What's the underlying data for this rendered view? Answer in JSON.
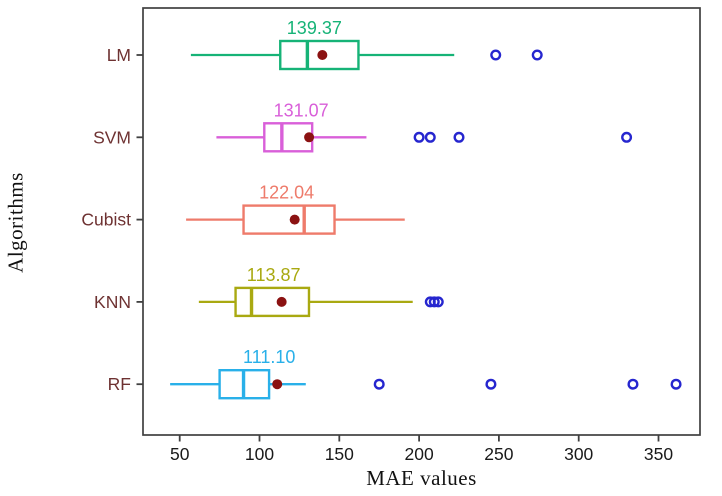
{
  "chart_data": {
    "type": "boxplot",
    "orientation": "horizontal",
    "xlabel": "MAE values",
    "ylabel": "Algorithms",
    "xlim": [
      27,
      376
    ],
    "x_ticks": [
      50,
      100,
      150,
      200,
      250,
      300,
      350
    ],
    "grid": false,
    "categories_top_to_bottom": [
      "LM",
      "SVM",
      "Cubist",
      "KNN",
      "RF"
    ],
    "series": [
      {
        "name": "LM",
        "color": "#16b377",
        "whisker_low": 57,
        "q1": 113,
        "median": 130,
        "q3": 162,
        "whisker_high": 222,
        "mean": 139.37,
        "mean_label": "139.37",
        "outliers": [
          248,
          274
        ]
      },
      {
        "name": "SVM",
        "color": "#d95fd9",
        "whisker_low": 73,
        "q1": 103,
        "median": 114,
        "q3": 133,
        "whisker_high": 167,
        "mean": 131.07,
        "mean_label": "131.07",
        "outliers": [
          200,
          207,
          225,
          330
        ]
      },
      {
        "name": "Cubist",
        "color": "#ee7b6b",
        "whisker_low": 54,
        "q1": 90,
        "median": 128,
        "q3": 147,
        "whisker_high": 191,
        "mean": 122.04,
        "mean_label": "122.04",
        "outliers": []
      },
      {
        "name": "KNN",
        "color": "#a9a911",
        "whisker_low": 62,
        "q1": 85,
        "median": 95,
        "q3": 131,
        "whisker_high": 196,
        "mean": 113.87,
        "mean_label": "113.87",
        "outliers": [
          207,
          209.5,
          212
        ]
      },
      {
        "name": "RF",
        "color": "#29b0e9",
        "whisker_low": 44,
        "q1": 75,
        "median": 90,
        "q3": 106,
        "whisker_high": 129,
        "mean": 111.1,
        "mean_label": "111.10",
        "outliers": [
          175,
          245,
          334,
          361
        ]
      }
    ],
    "styles": {
      "mean_dot_color": "#8b1212",
      "outlier_color": "#2626cf",
      "category_label_color": "#6e3232",
      "axis_color": "#404040",
      "tick_label_color": "#1a1a1a"
    }
  }
}
